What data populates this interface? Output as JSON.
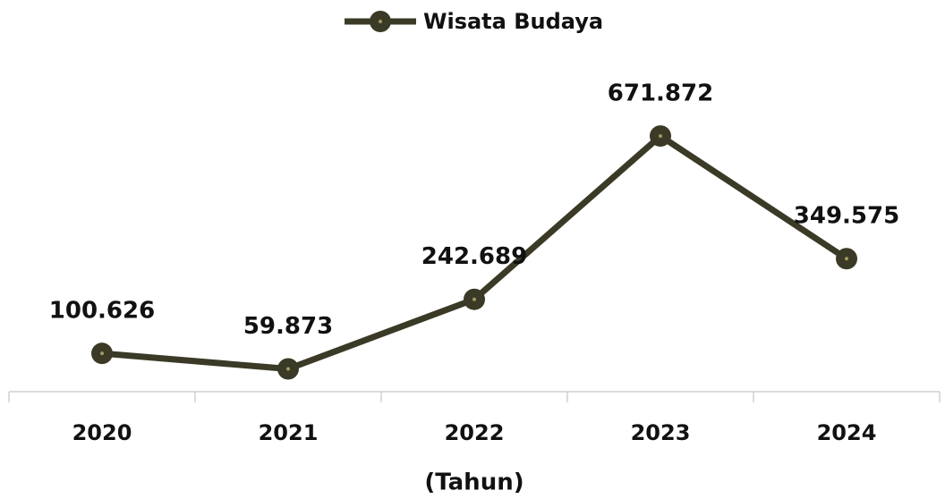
{
  "chart_data": {
    "type": "line",
    "x_label": "(Tahun)",
    "categories": [
      "2020",
      "2021",
      "2022",
      "2023",
      "2024"
    ],
    "series": [
      {
        "name": "Wisata Budaya",
        "color": "#3b3a26",
        "values": [
          100626,
          59873,
          242689,
          671872,
          349575
        ],
        "value_labels": [
          "100.626",
          "59.873",
          "242.689",
          "671.872",
          "349.575"
        ]
      }
    ],
    "ylim": [
      0,
      900000
    ],
    "legend": "top"
  }
}
